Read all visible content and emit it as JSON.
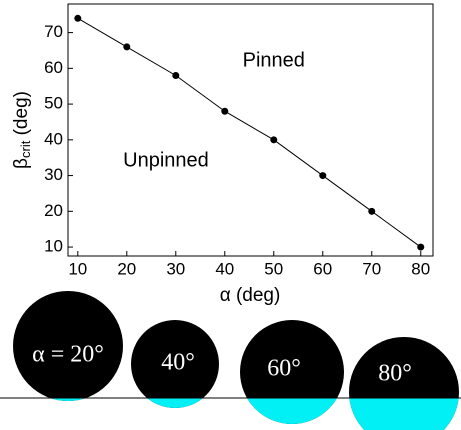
{
  "chart_data": {
    "type": "line",
    "x": [
      10,
      20,
      30,
      40,
      50,
      60,
      70,
      80
    ],
    "series": [
      {
        "color": "#000000",
        "values": [
          74,
          66,
          58,
          48,
          40,
          30,
          20,
          10
        ]
      }
    ],
    "xlim": [
      8,
      82.5
    ],
    "ylim": [
      7.5,
      78
    ],
    "xticks": [
      10,
      20,
      30,
      40,
      50,
      60,
      70,
      80
    ],
    "yticks": [
      10,
      20,
      30,
      40,
      50,
      60,
      70
    ],
    "x_label": "α (deg)",
    "y_label": [
      "β",
      "crit",
      " (deg)"
    ],
    "annotations": [
      {
        "text": "Pinned",
        "x": 50,
        "y": 62
      },
      {
        "text": "Unpinned",
        "x": 28,
        "y": 34
      }
    ]
  },
  "droplets": [
    "α = 20°",
    "40°",
    "60°",
    "80°"
  ]
}
